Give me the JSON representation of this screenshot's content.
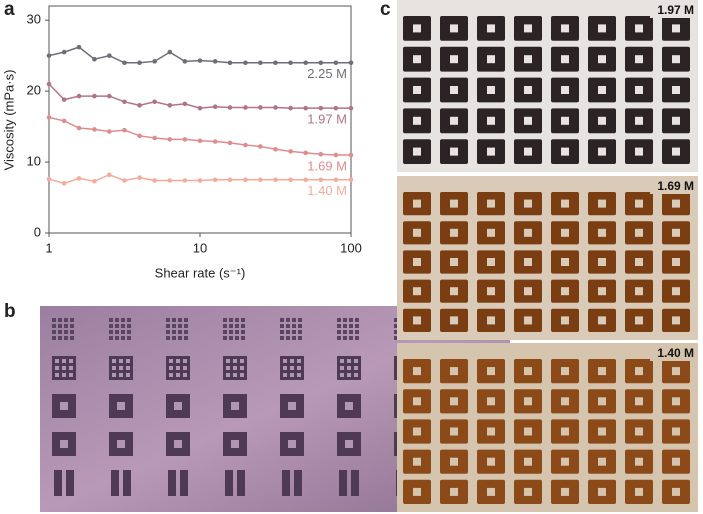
{
  "chart_data": {
    "type": "line",
    "panel_label": "a",
    "x_label": "Shear rate (s⁻¹)",
    "y_label": "Viscosity (mPa·s)",
    "xscale": "log",
    "x": [
      1,
      1.26,
      1.58,
      2,
      2.51,
      3.16,
      3.98,
      5.01,
      6.31,
      7.94,
      10,
      12.6,
      15.8,
      20,
      25.1,
      31.6,
      39.8,
      50.1,
      63.1,
      79.4,
      100
    ],
    "xlim": [
      1,
      100
    ],
    "xticks": [
      1,
      10,
      100
    ],
    "ylim": [
      0,
      32
    ],
    "yticks": [
      0,
      10,
      20,
      30
    ],
    "series": [
      {
        "name": "2.25 M",
        "color": "#6e6e78",
        "values": [
          25,
          25.5,
          26.2,
          24.5,
          25,
          24,
          24,
          24.2,
          25.5,
          24.2,
          24.3,
          24.2,
          24,
          24,
          24,
          24,
          24,
          24,
          24,
          24,
          24
        ]
      },
      {
        "name": "1.97 M",
        "color": "#b07485",
        "values": [
          21,
          18.8,
          19.3,
          19.3,
          19.3,
          18.5,
          18,
          18.5,
          18,
          18.2,
          17.6,
          17.8,
          17.7,
          17.7,
          17.7,
          17.7,
          17.6,
          17.6,
          17.6,
          17.6,
          17.6
        ]
      },
      {
        "name": "1.69 M",
        "color": "#e08c8e",
        "values": [
          16.3,
          15.8,
          14.8,
          14.6,
          14.3,
          14.5,
          13.7,
          13.4,
          13.2,
          13.2,
          13,
          12.9,
          12.7,
          12.4,
          12.2,
          11.8,
          11.5,
          11.3,
          11.1,
          11,
          11
        ]
      },
      {
        "name": "1.40 M",
        "color": "#f4ab9c",
        "values": [
          7.6,
          7,
          7.7,
          7.3,
          8.2,
          7.4,
          7.8,
          7.4,
          7.4,
          7.4,
          7.4,
          7.5,
          7.5,
          7.5,
          7.5,
          7.5,
          7.5,
          7.5,
          7.5,
          7.5,
          7.5
        ]
      }
    ]
  },
  "photo_b": {
    "panel_label": "b"
  },
  "photo_c": {
    "panel_label": "c",
    "panels": [
      "1.97 M",
      "1.69 M",
      "1.40 M"
    ]
  }
}
